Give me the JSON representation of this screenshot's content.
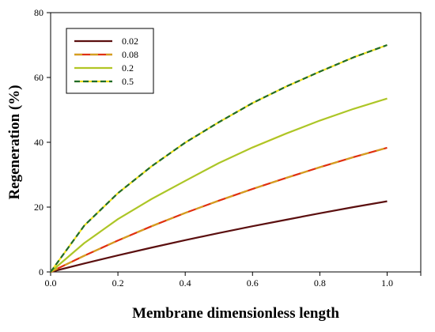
{
  "chart_data": {
    "type": "line",
    "title": "",
    "xlabel": "Membrane dimensionless length",
    "ylabel": "Regeneration (%)",
    "xlim": [
      0,
      1.1
    ],
    "ylim": [
      0,
      80
    ],
    "xticks": [
      0.0,
      0.2,
      0.4,
      0.6,
      0.8,
      1.0
    ],
    "xtick_labels": [
      "0.0",
      "0.2",
      "0.4",
      "0.6",
      "0.8",
      "1.0"
    ],
    "yticks": [
      0,
      20,
      40,
      60,
      80
    ],
    "ytick_labels": [
      "0",
      "20",
      "40",
      "60",
      "80"
    ],
    "grid": false,
    "legend_position": "top-left",
    "series": [
      {
        "name": "0.02",
        "color": "#5b0f0f",
        "style": "solid",
        "x": [
          0,
          0.1,
          0.2,
          0.3,
          0.4,
          0.5,
          0.6,
          0.7,
          0.8,
          0.9,
          1.0
        ],
        "y": [
          0,
          2.6,
          5.1,
          7.5,
          9.8,
          12.0,
          14.1,
          16.1,
          18.1,
          20.0,
          21.8
        ]
      },
      {
        "name": "0.08",
        "color": "#d4a020",
        "accent": "#e03010",
        "style": "dashed-two-tone",
        "x": [
          0,
          0.1,
          0.2,
          0.3,
          0.4,
          0.5,
          0.6,
          0.7,
          0.8,
          0.9,
          1.0
        ],
        "y": [
          0,
          5.0,
          9.7,
          14.1,
          18.2,
          22.0,
          25.6,
          29.0,
          32.3,
          35.4,
          38.3
        ]
      },
      {
        "name": "0.2",
        "color": "#99cc33",
        "accent": "#f0b400",
        "style": "solid",
        "x": [
          0,
          0.1,
          0.2,
          0.3,
          0.4,
          0.5,
          0.6,
          0.7,
          0.8,
          0.9,
          1.0
        ],
        "y": [
          0,
          8.9,
          16.3,
          22.5,
          28.1,
          33.6,
          38.4,
          42.7,
          46.7,
          50.3,
          53.5
        ]
      },
      {
        "name": "0.5",
        "color": "#1f6b2a",
        "accent": "#f2e020",
        "style": "dashed-two-tone",
        "x": [
          0,
          0.1,
          0.2,
          0.3,
          0.4,
          0.5,
          0.6,
          0.7,
          0.8,
          0.9,
          1.0
        ],
        "y": [
          0,
          14.3,
          24.3,
          32.6,
          39.9,
          46.2,
          52.1,
          57.2,
          61.8,
          66.2,
          70.0
        ]
      }
    ]
  }
}
